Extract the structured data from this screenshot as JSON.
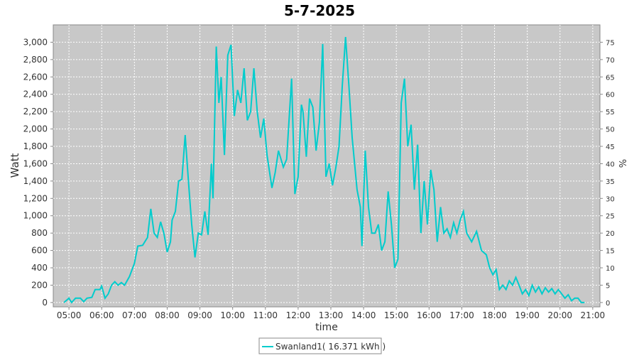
{
  "chart_data": {
    "type": "line",
    "title": "5-7-2025",
    "x_label": "time",
    "y_label": "Watt",
    "y2_label": "%",
    "xlim": [
      4.52,
      21.22
    ],
    "xticks": [
      {
        "value": 5,
        "label": "05:00"
      },
      {
        "value": 6,
        "label": "06:00"
      },
      {
        "value": 7,
        "label": "07:00"
      },
      {
        "value": 8,
        "label": "08:00"
      },
      {
        "value": 9,
        "label": "09:00"
      },
      {
        "value": 10,
        "label": "10:00"
      },
      {
        "value": 11,
        "label": "11:00"
      },
      {
        "value": 12,
        "label": "12:00"
      },
      {
        "value": 13,
        "label": "13:00"
      },
      {
        "value": 14,
        "label": "14:00"
      },
      {
        "value": 15,
        "label": "15:00"
      },
      {
        "value": 16,
        "label": "16:00"
      },
      {
        "value": 17,
        "label": "17:00"
      },
      {
        "value": 18,
        "label": "18:00"
      },
      {
        "value": 19,
        "label": "19:00"
      },
      {
        "value": 20,
        "label": "20:00"
      },
      {
        "value": 21,
        "label": "21:00"
      }
    ],
    "ylim": [
      -50,
      3200
    ],
    "yticks": [
      0,
      200,
      400,
      600,
      800,
      {
        "value": 1000,
        "label": "1,000"
      },
      {
        "value": 1200,
        "label": "1,200"
      },
      {
        "value": 1400,
        "label": "1,400"
      },
      {
        "value": 1600,
        "label": "1,600"
      },
      {
        "value": 1800,
        "label": "1,800"
      },
      {
        "value": 2000,
        "label": "2,000"
      },
      {
        "value": 2200,
        "label": "2,200"
      },
      {
        "value": 2400,
        "label": "2,400"
      },
      {
        "value": 2600,
        "label": "2,600"
      },
      {
        "value": 2800,
        "label": "2,800"
      },
      {
        "value": 3000,
        "label": "3,000"
      }
    ],
    "y2lim": [
      -1.25,
      80
    ],
    "y2ticks": [
      0,
      5,
      10,
      15,
      20,
      25,
      30,
      35,
      40,
      45,
      50,
      55,
      60,
      65,
      70,
      75
    ],
    "grid": true,
    "legend": "bottom",
    "x": [
      4.85,
      5.0,
      5.08,
      5.2,
      5.35,
      5.45,
      5.55,
      5.7,
      5.8,
      5.95,
      6.0,
      6.1,
      6.2,
      6.3,
      6.4,
      6.5,
      6.6,
      6.7,
      6.85,
      7.0,
      7.1,
      7.25,
      7.4,
      7.5,
      7.6,
      7.7,
      7.8,
      7.9,
      8.0,
      8.1,
      8.15,
      8.25,
      8.35,
      8.45,
      8.55,
      8.65,
      8.75,
      8.85,
      8.95,
      9.05,
      9.15,
      9.25,
      9.35,
      9.4,
      9.5,
      9.58,
      9.65,
      9.75,
      9.85,
      9.95,
      10.05,
      10.15,
      10.25,
      10.35,
      10.45,
      10.55,
      10.65,
      10.75,
      10.85,
      10.95,
      11.05,
      11.2,
      11.3,
      11.4,
      11.55,
      11.65,
      11.8,
      11.9,
      12.0,
      12.1,
      12.15,
      12.25,
      12.35,
      12.45,
      12.55,
      12.65,
      12.75,
      12.85,
      12.95,
      13.05,
      13.15,
      13.25,
      13.35,
      13.45,
      13.55,
      13.65,
      13.8,
      13.9,
      13.95,
      14.05,
      14.15,
      14.25,
      14.35,
      14.45,
      14.55,
      14.65,
      14.75,
      14.85,
      14.95,
      15.05,
      15.15,
      15.25,
      15.35,
      15.45,
      15.55,
      15.65,
      15.75,
      15.85,
      15.95,
      16.05,
      16.15,
      16.25,
      16.35,
      16.45,
      16.55,
      16.65,
      16.75,
      16.85,
      16.95,
      17.05,
      17.15,
      17.3,
      17.45,
      17.6,
      17.75,
      17.85,
      17.95,
      18.05,
      18.15,
      18.25,
      18.35,
      18.45,
      18.55,
      18.65,
      18.75,
      18.85,
      18.95,
      19.05,
      19.15,
      19.25,
      19.35,
      19.45,
      19.55,
      19.65,
      19.75,
      19.85,
      19.95,
      20.05,
      20.15,
      20.25,
      20.35,
      20.45,
      20.55,
      20.65,
      20.75
    ],
    "series": [
      {
        "name": "Swanland1( 16.371 kWh )",
        "color": "#00cccc",
        "values": [
          0,
          50,
          0,
          50,
          50,
          10,
          50,
          60,
          150,
          150,
          190,
          50,
          100,
          200,
          240,
          200,
          230,
          200,
          300,
          450,
          650,
          660,
          750,
          1080,
          800,
          750,
          930,
          800,
          580,
          700,
          950,
          1050,
          1400,
          1420,
          1930,
          1400,
          900,
          520,
          800,
          780,
          1050,
          780,
          1600,
          1200,
          2950,
          2300,
          2600,
          1700,
          2850,
          2970,
          2150,
          2450,
          2300,
          2700,
          2100,
          2200,
          2700,
          2200,
          1900,
          2120,
          1700,
          1320,
          1500,
          1750,
          1560,
          1650,
          2580,
          1250,
          1450,
          2280,
          2200,
          1680,
          2350,
          2250,
          1750,
          2080,
          2980,
          1450,
          1600,
          1350,
          1550,
          1800,
          2500,
          3060,
          2500,
          1900,
          1300,
          1100,
          650,
          1750,
          1100,
          800,
          800,
          900,
          600,
          700,
          1280,
          900,
          400,
          500,
          2300,
          2580,
          1800,
          2050,
          1300,
          1820,
          800,
          1400,
          900,
          1530,
          1300,
          700,
          1100,
          800,
          850,
          750,
          920,
          800,
          950,
          1050,
          800,
          700,
          820,
          600,
          550,
          400,
          320,
          380,
          150,
          200,
          150,
          250,
          200,
          290,
          200,
          100,
          150,
          80,
          200,
          120,
          180,
          100,
          170,
          120,
          160,
          100,
          150,
          100,
          50,
          90,
          20,
          50,
          50,
          0,
          0
        ]
      }
    ]
  }
}
